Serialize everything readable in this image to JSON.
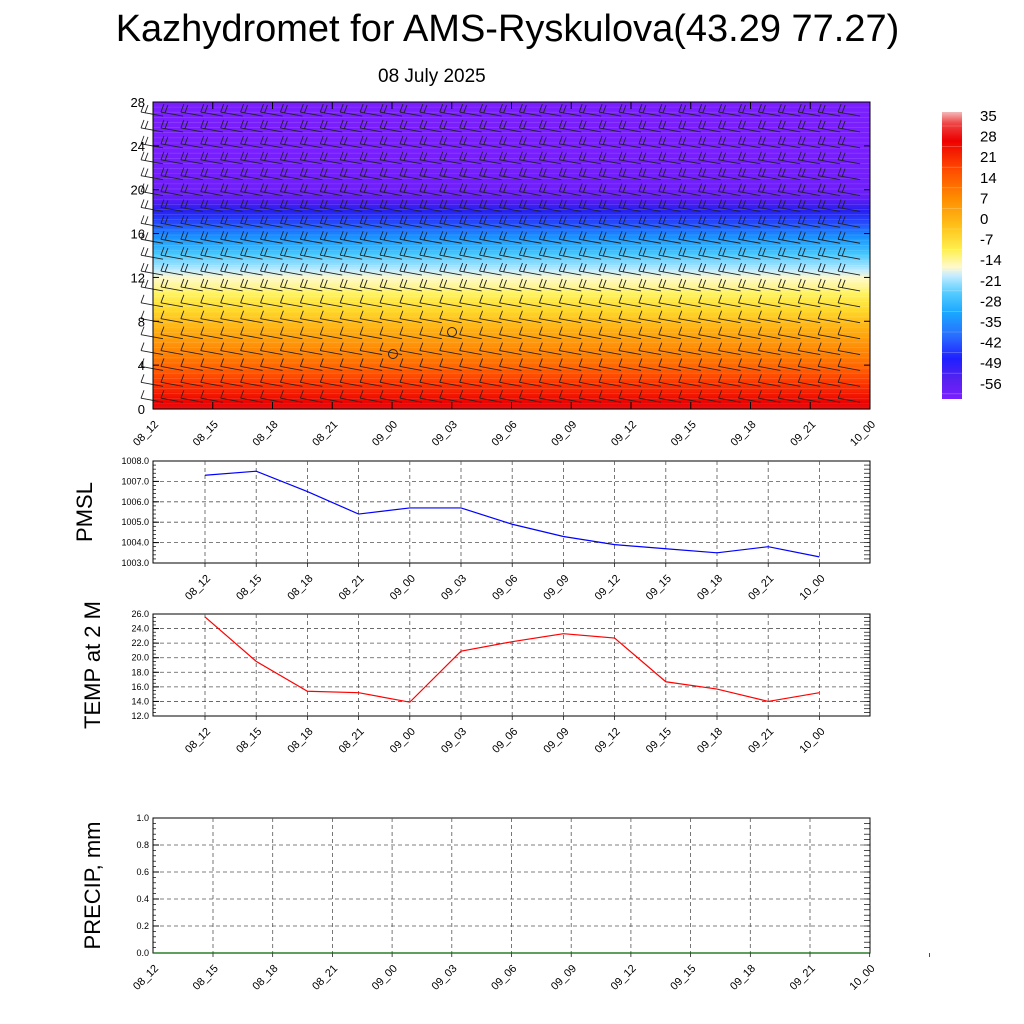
{
  "title": "Kazhydromet for AMS-Ryskulova(43.29 77.27)",
  "date": "08 July 2025",
  "time_labels": [
    "08_12",
    "08_15",
    "08_18",
    "08_21",
    "09_00",
    "09_03",
    "09_06",
    "09_09",
    "09_12",
    "09_15",
    "09_18",
    "09_21",
    "10_00"
  ],
  "chart_data": [
    {
      "type": "heatmap",
      "title": "",
      "ylim": [
        0,
        28
      ],
      "yticks": [
        "0",
        "4",
        "8",
        "12",
        "16",
        "20",
        "24",
        "28"
      ],
      "x": [
        "08_12",
        "08_15",
        "08_18",
        "08_21",
        "09_00",
        "09_03",
        "09_06",
        "09_09",
        "09_12",
        "09_15",
        "09_18",
        "09_21",
        "10_00"
      ],
      "levels": [
        0,
        4,
        8,
        12,
        16,
        20,
        24,
        28
      ],
      "temperature_profile": [
        30,
        16,
        4,
        -12,
        -34,
        -60,
        -64,
        -64
      ],
      "colorbar": {
        "labels": [
          "35",
          "28",
          "21",
          "14",
          "7",
          "0",
          "-7",
          "-14",
          "-21",
          "-28",
          "-35",
          "-42",
          "-49",
          "-56"
        ],
        "min": -63,
        "max": 35
      },
      "wind_barbs": true
    },
    {
      "type": "line",
      "ylabel": "PMSL",
      "x": [
        "08_12",
        "08_15",
        "08_18",
        "08_21",
        "09_00",
        "09_03",
        "09_06",
        "09_09",
        "09_12",
        "09_15",
        "09_18",
        "09_21",
        "10_00"
      ],
      "values": [
        1007.3,
        1007.5,
        1006.5,
        1005.4,
        1005.7,
        1005.7,
        1004.9,
        1004.3,
        1003.9,
        1003.7,
        1003.5,
        1003.8,
        1003.3
      ],
      "ylim": [
        1003.0,
        1008.0
      ],
      "yticks": [
        "1003.0",
        "1004.0",
        "1005.0",
        "1006.0",
        "1007.0",
        "1008.0"
      ],
      "color": "#0000ff",
      "grid": true
    },
    {
      "type": "line",
      "ylabel": "TEMP at 2 M",
      "x": [
        "08_12",
        "08_15",
        "08_18",
        "08_21",
        "09_00",
        "09_03",
        "09_06",
        "09_09",
        "09_12",
        "09_15",
        "09_18",
        "09_21",
        "10_00"
      ],
      "values": [
        25.6,
        19.5,
        15.4,
        15.2,
        13.9,
        20.9,
        22.2,
        23.3,
        22.7,
        16.7,
        15.7,
        14.0,
        15.2
      ],
      "ylim": [
        12.0,
        26.0
      ],
      "yticks": [
        "12.0",
        "14.0",
        "16.0",
        "18.0",
        "20.0",
        "22.0",
        "24.0",
        "26.0"
      ],
      "color": "#ff0000",
      "grid": true
    },
    {
      "type": "line",
      "ylabel": "PRECIP, mm",
      "x": [
        "08_12",
        "08_15",
        "08_18",
        "08_21",
        "09_00",
        "09_03",
        "09_06",
        "09_09",
        "09_12",
        "09_15",
        "09_18",
        "09_21",
        "10_00"
      ],
      "values": [
        0,
        0,
        0,
        0,
        0,
        0,
        0,
        0,
        0,
        0,
        0,
        0,
        0
      ],
      "ylim": [
        0.0,
        1.0
      ],
      "yticks": [
        "0.0",
        "0.2",
        "0.4",
        "0.6",
        "0.8",
        "1.0"
      ],
      "color": "#006400",
      "grid": true
    }
  ]
}
